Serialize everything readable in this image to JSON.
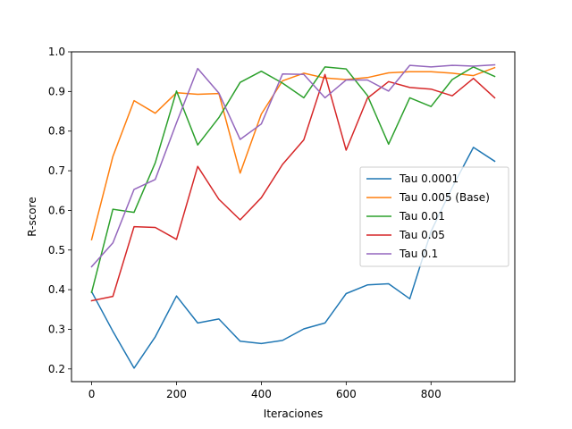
{
  "chart_data": {
    "type": "line",
    "xlabel": "Iteraciones",
    "ylabel": "R-score",
    "xlim": [
      -47.5,
      997.5
    ],
    "ylim": [
      0.168,
      1.0
    ],
    "xticks": [
      0,
      200,
      400,
      600,
      800
    ],
    "xtick_labels": [
      "0",
      "200",
      "400",
      "600",
      "800"
    ],
    "yticks": [
      0.2,
      0.3,
      0.4,
      0.5,
      0.6,
      0.7,
      0.8,
      0.9,
      1.0
    ],
    "ytick_labels": [
      "0.2",
      "0.3",
      "0.4",
      "0.5",
      "0.6",
      "0.7",
      "0.8",
      "0.9",
      "1.0"
    ],
    "grid": false,
    "legend_position": "center-right",
    "x": [
      0,
      50,
      100,
      150,
      200,
      250,
      300,
      350,
      400,
      450,
      500,
      550,
      600,
      650,
      700,
      750,
      800,
      850,
      900,
      950
    ],
    "series": [
      {
        "name": "Tau 0.0001",
        "color": "#1f77b4",
        "values": [
          0.395,
          0.295,
          0.202,
          0.281,
          0.384,
          0.316,
          0.326,
          0.27,
          0.264,
          0.272,
          0.301,
          0.316,
          0.39,
          0.412,
          0.415,
          0.377,
          0.547,
          0.658,
          0.759,
          0.724
        ]
      },
      {
        "name": "Tau 0.005 (Base)",
        "color": "#ff7f0e",
        "values": [
          0.526,
          0.736,
          0.877,
          0.845,
          0.897,
          0.893,
          0.895,
          0.694,
          0.843,
          0.927,
          0.946,
          0.934,
          0.93,
          0.935,
          0.947,
          0.95,
          0.95,
          0.946,
          0.94,
          0.96
        ]
      },
      {
        "name": "Tau 0.01",
        "color": "#2ca02c",
        "values": [
          0.393,
          0.603,
          0.595,
          0.72,
          0.901,
          0.765,
          0.834,
          0.923,
          0.951,
          0.921,
          0.884,
          0.962,
          0.957,
          0.89,
          0.767,
          0.884,
          0.862,
          0.93,
          0.962,
          0.938
        ]
      },
      {
        "name": "Tau 0.05",
        "color": "#d62728",
        "values": [
          0.372,
          0.383,
          0.559,
          0.557,
          0.527,
          0.711,
          0.628,
          0.576,
          0.632,
          0.716,
          0.778,
          0.943,
          0.752,
          0.883,
          0.925,
          0.91,
          0.906,
          0.889,
          0.933,
          0.884
        ]
      },
      {
        "name": "Tau 0.1",
        "color": "#9467bd",
        "values": [
          0.458,
          0.518,
          0.653,
          0.678,
          0.821,
          0.958,
          0.896,
          0.779,
          0.818,
          0.944,
          0.943,
          0.884,
          0.929,
          0.929,
          0.901,
          0.966,
          0.962,
          0.966,
          0.964,
          0.967
        ]
      }
    ]
  }
}
